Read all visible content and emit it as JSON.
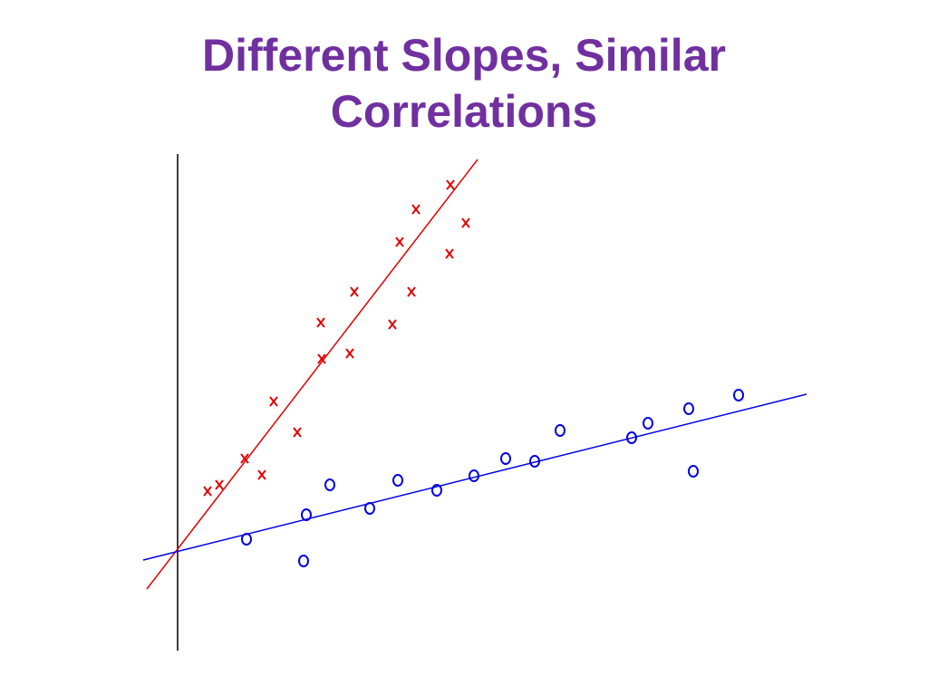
{
  "chart_data": {
    "type": "scatter",
    "title": "Different Slopes, Similar Correlations",
    "xlim": [
      -4,
      70
    ],
    "ylim": [
      -11,
      44
    ],
    "series": [
      {
        "color": "#e00000",
        "marker": "x",
        "x": [
          3.3,
          4.6,
          7.4,
          9.3,
          10.6,
          13.2,
          15.8,
          15.9,
          19,
          19.5,
          23.7,
          24.5,
          25.8,
          26.3,
          30,
          30.1,
          31.8
        ],
        "y": [
          6.5,
          7.2,
          10.1,
          8.3,
          16.4,
          13,
          25.1,
          21.1,
          21.7,
          28.5,
          24.9,
          34,
          28.5,
          37.6,
          32.7,
          40.3,
          36.1
        ],
        "trend_x": [
          -3.4,
          33.1
        ],
        "trend_y": [
          -4.3,
          43.1
        ]
      },
      {
        "color": "#0000e0",
        "marker": "o",
        "x": [
          7.6,
          13.9,
          14.2,
          16.8,
          21.2,
          24.3,
          28.6,
          32.7,
          36.2,
          39.4,
          42.2,
          50.1,
          51.9,
          56.4,
          56.9,
          61.9
        ],
        "y": [
          1.2,
          -1.2,
          3.9,
          7.2,
          4.6,
          7.7,
          6.6,
          8.2,
          10.1,
          9.8,
          13.2,
          12.4,
          14,
          15.6,
          8.7,
          17.1
        ],
        "trend_x": [
          -3.8,
          69.4
        ],
        "trend_y": [
          -1.1,
          17.2
        ]
      }
    ]
  }
}
